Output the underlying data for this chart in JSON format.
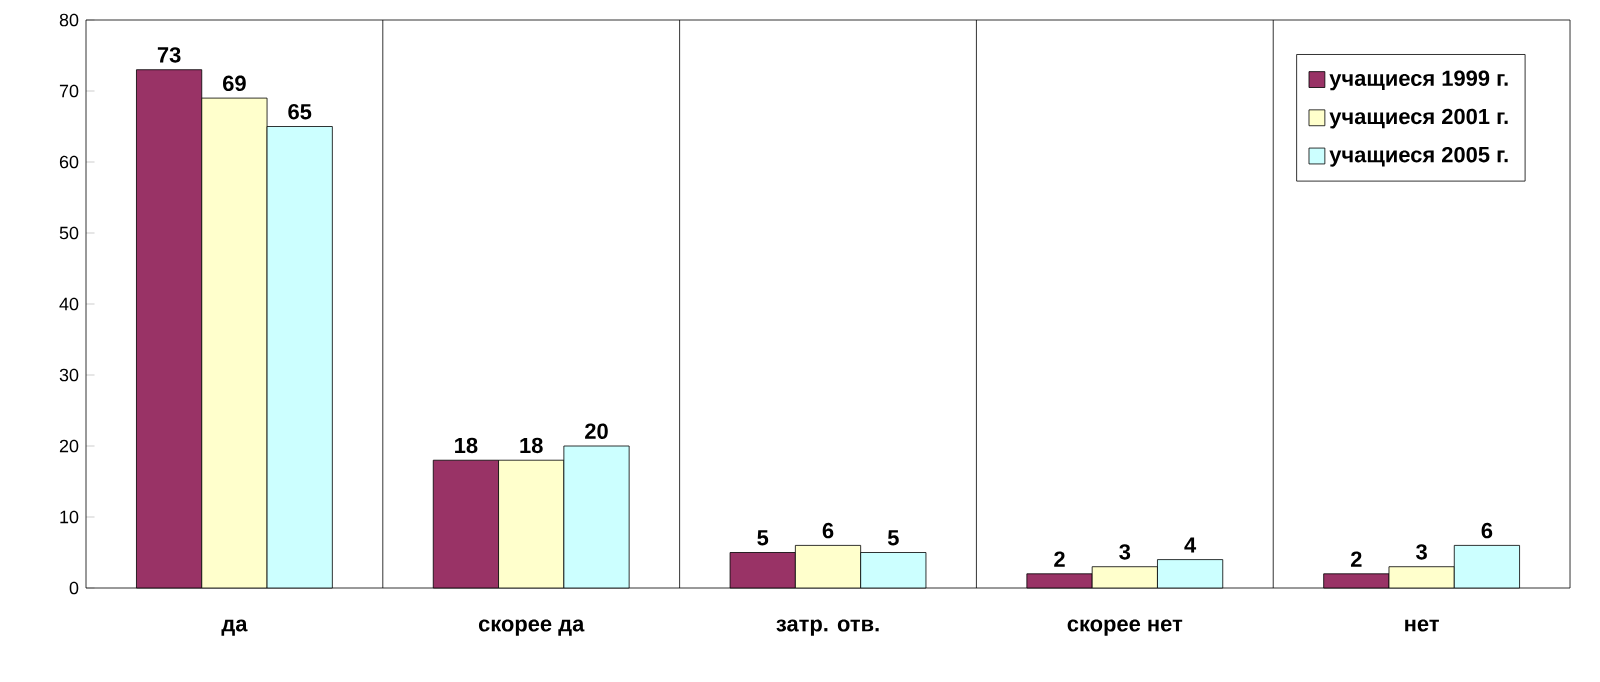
{
  "chart_data": {
    "type": "bar",
    "categories": [
      "да",
      "скорее да",
      "затр. отв.",
      "скорее нет",
      "нет"
    ],
    "series": [
      {
        "name": "учащиеся 1999 г.",
        "color": "#993366",
        "values": [
          73,
          18,
          5,
          2,
          2
        ]
      },
      {
        "name": "учащиеся 2001 г.",
        "color": "#ffffcc",
        "values": [
          69,
          18,
          6,
          3,
          3
        ]
      },
      {
        "name": "учащиеся 2005 г.",
        "color": "#ccffff",
        "values": [
          65,
          20,
          5,
          4,
          6
        ]
      }
    ],
    "ylim": [
      0,
      80
    ],
    "yticks": [
      0,
      10,
      20,
      30,
      40,
      50,
      60,
      70,
      80
    ],
    "grid": "x",
    "legend": "top right",
    "data_labels": true
  }
}
